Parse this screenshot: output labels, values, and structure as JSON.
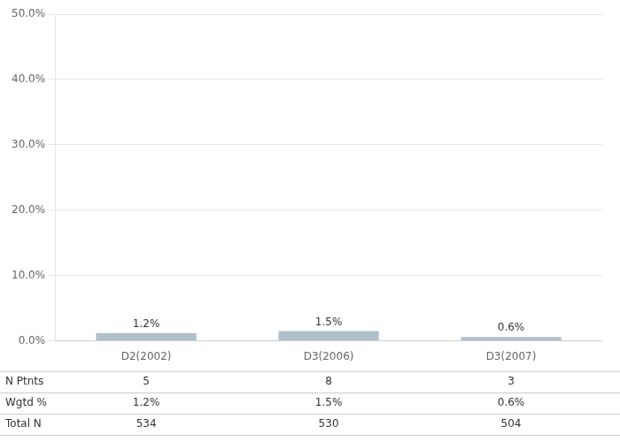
{
  "chart_data": {
    "type": "bar",
    "categories": [
      "D2(2002)",
      "D3(2006)",
      "D3(2007)"
    ],
    "values": [
      1.2,
      1.5,
      0.6
    ],
    "value_labels": [
      "1.2%",
      "1.5%",
      "0.6%"
    ],
    "data_labels": true,
    "color": "#aec0cc",
    "ylim": [
      0,
      50
    ],
    "yticks": [
      {
        "value": 0,
        "label": "0.0%"
      },
      {
        "value": 10,
        "label": "10.0%"
      },
      {
        "value": 20,
        "label": "20.0%"
      },
      {
        "value": 30,
        "label": "30.0%"
      },
      {
        "value": 40,
        "label": "40.0%"
      },
      {
        "value": 50,
        "label": "50.0%"
      }
    ],
    "grid": true,
    "table": {
      "row_labels": [
        "N Ptnts",
        "Wgtd %",
        "Total N"
      ],
      "rows": [
        [
          "5",
          "8",
          "3"
        ],
        [
          "1.2%",
          "1.5%",
          "0.6%"
        ],
        [
          "534",
          "530",
          "504"
        ]
      ]
    }
  }
}
